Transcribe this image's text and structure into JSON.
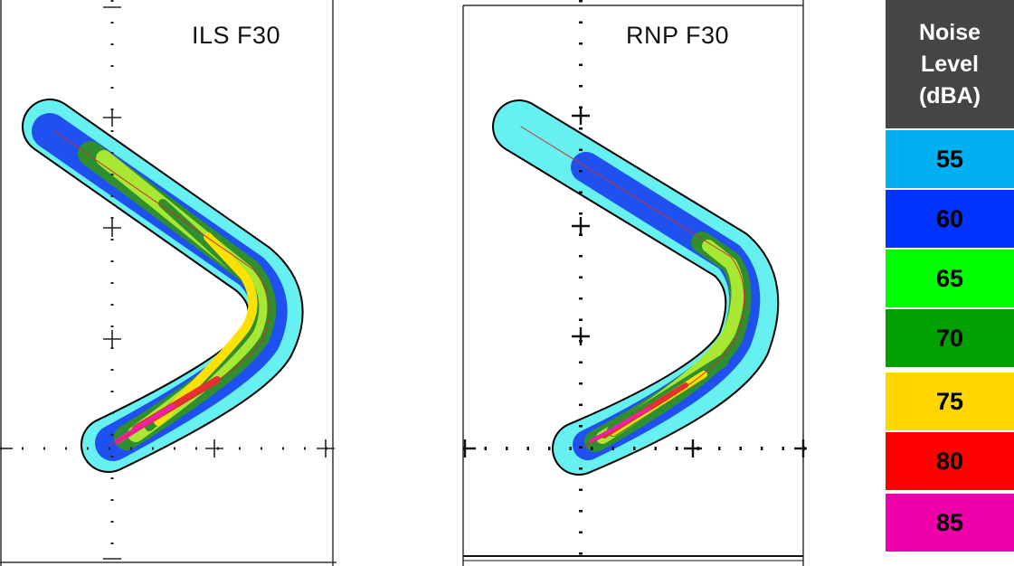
{
  "panels": [
    {
      "id": "left",
      "title": "ILS F30"
    },
    {
      "id": "right",
      "title": "RNP F30"
    }
  ],
  "legend": {
    "header": "Noise\nLevel\n(dBA)",
    "levels": [
      {
        "label": "55",
        "color": "#00b0f0"
      },
      {
        "label": "60",
        "color": "#0033ff"
      },
      {
        "label": "65",
        "color": "#00ff00"
      },
      {
        "label": "70",
        "color": "#00a000"
      },
      {
        "label": "75",
        "color": "#ffd700"
      },
      {
        "label": "80",
        "color": "#ff0000"
      },
      {
        "label": "85",
        "color": "#ee00aa"
      }
    ]
  },
  "contour_colors": {
    "outline": "#000000",
    "c55": "#66f0f0",
    "c60": "#1f50f0",
    "c65": "#a8e832",
    "c70": "#2f8f2f",
    "c75": "#ffe100",
    "c80": "#e83030",
    "c85": "#ee22aa",
    "track": "#c83232"
  }
}
